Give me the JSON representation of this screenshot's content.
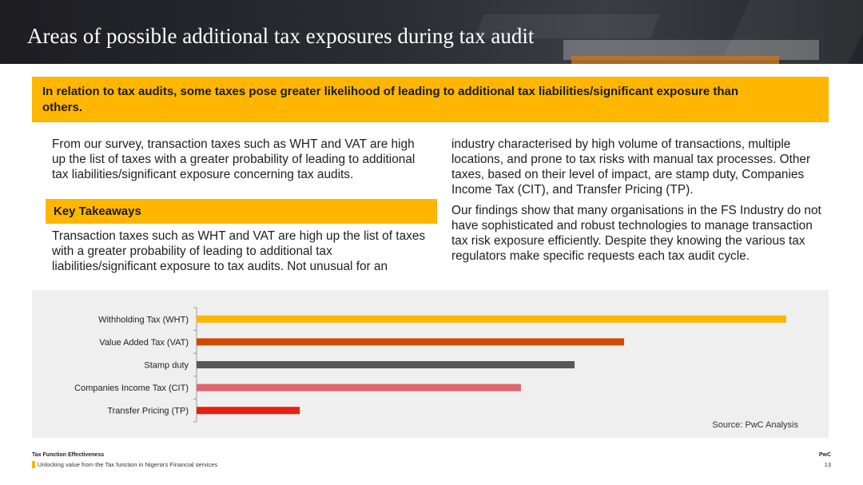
{
  "slide": {
    "title": "Areas of possible additional tax exposures during tax audit",
    "banner": "In relation to tax audits, some taxes pose greater likelihood of leading to additional tax liabilities/significant exposure than others.",
    "paragraph_left_1": "From our survey, transaction taxes such as WHT and VAT are high up the list of taxes with a greater probability of leading to additional tax liabilities/significant exposure concerning tax audits.",
    "key_takeaways_label": "Key Takeaways",
    "paragraph_left_2": "Transaction taxes such as WHT and VAT are high up the list of taxes with a greater probability of leading to additional tax liabilities/significant exposure to tax audits. Not unusual for an",
    "paragraph_right_1": "industry characterised by high volume of transactions, multiple locations, and prone to tax risks with manual tax processes. Other taxes, based on their level of impact, are stamp duty, Companies Income Tax (CIT), and Transfer Pricing (TP).",
    "paragraph_right_2": "Our findings show that many organisations in the FS Industry do not have sophisticated and robust technologies to manage transaction tax risk exposure efficiently. Despite they knowing the various tax regulators make specific requests each tax audit cycle.",
    "source": "Source: PwC Analysis"
  },
  "footer": {
    "title": "Tax Function Effectiveness",
    "subtitle": "Unlocking value from the Tax function in Nigeria's Financial services",
    "brand": "PwC",
    "page": "13"
  },
  "chart_data": {
    "type": "bar",
    "orientation": "horizontal",
    "categories": [
      "Withholding Tax (WHT)",
      "Value Added Tax (VAT)",
      "Stamp duty",
      "Companies Income Tax (CIT)",
      "Transfer Pricing (TP)"
    ],
    "values": [
      100,
      72.5,
      64.1,
      55.0,
      17.5
    ],
    "colors": [
      "#ffb600",
      "#d04a02",
      "#575757",
      "#e0666e",
      "#eb1e0f"
    ],
    "xlim": [
      0,
      100
    ],
    "axis_labels_shown": false,
    "grid": false,
    "legend": "none"
  }
}
